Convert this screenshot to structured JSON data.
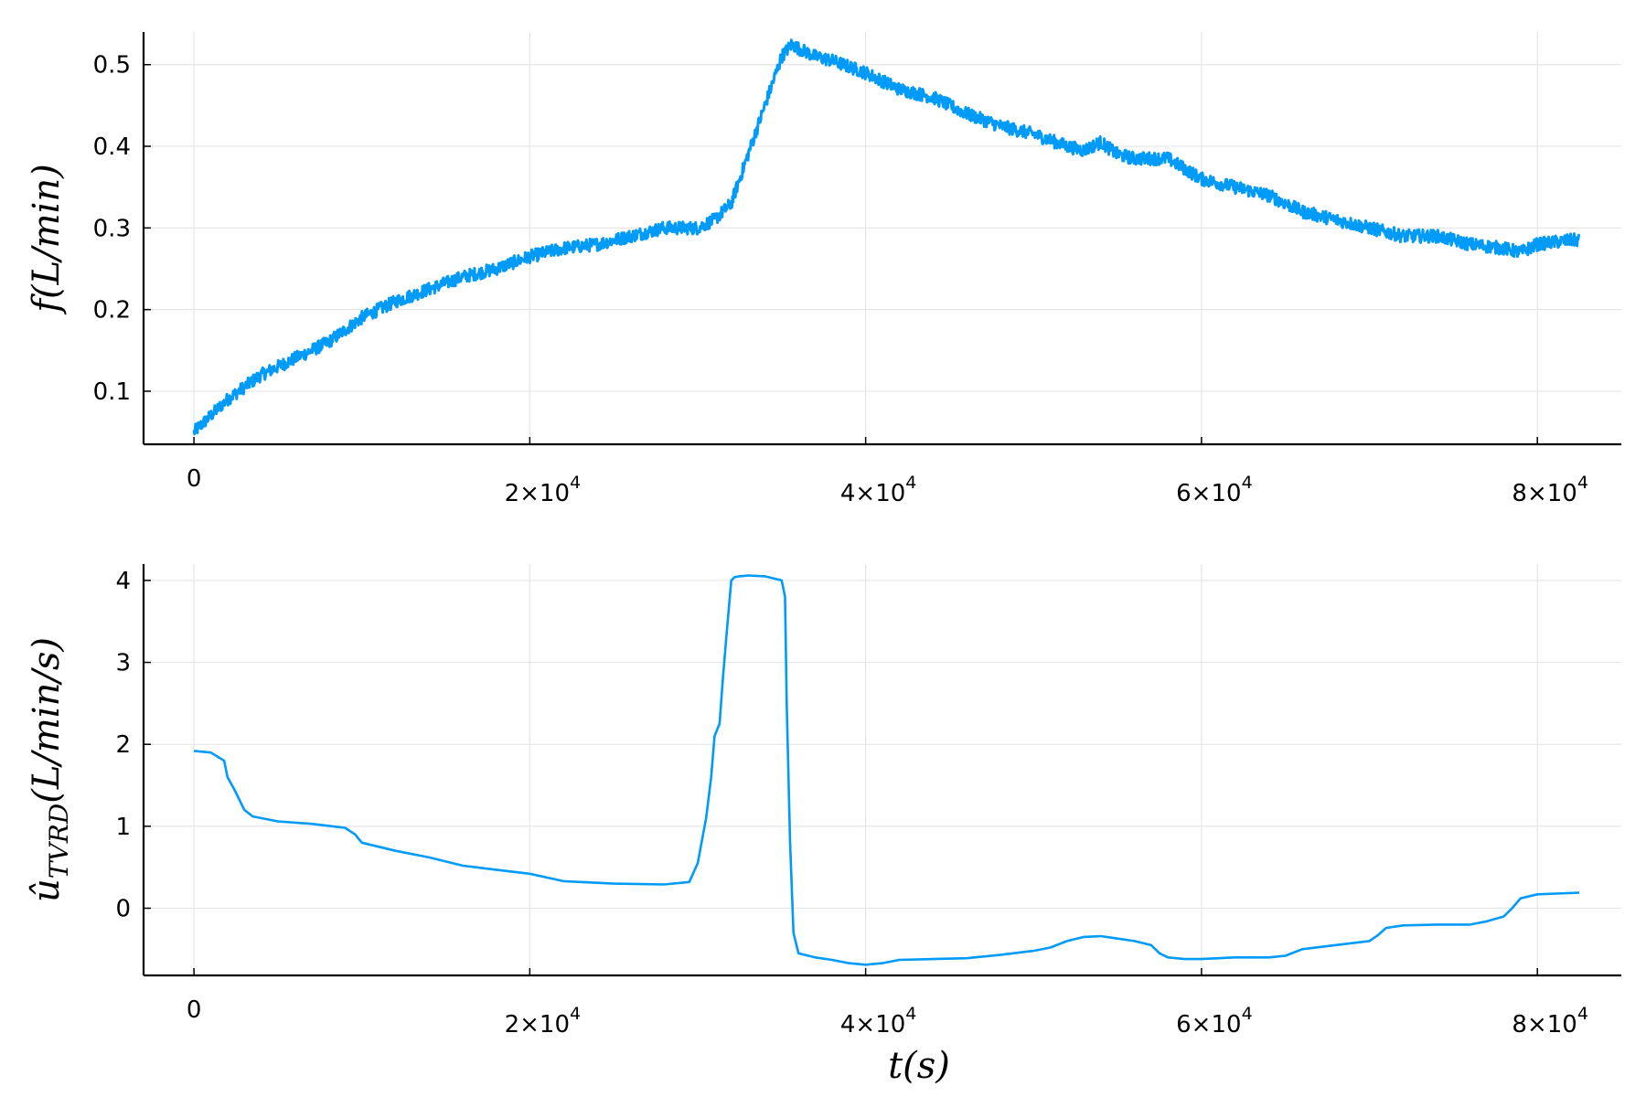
{
  "chart_data": [
    {
      "type": "line",
      "title": "",
      "xlabel": "",
      "ylabel": "f(L/min)",
      "xlim": [
        -3000,
        85000
      ],
      "ylim": [
        0.035,
        0.54
      ],
      "grid": true,
      "x_ticks": [
        0,
        20000,
        40000,
        60000,
        80000
      ],
      "x_tick_labels": [
        {
          "mantissa": "0",
          "exp": ""
        },
        {
          "mantissa": "2×10",
          "exp": "4"
        },
        {
          "mantissa": "4×10",
          "exp": "4"
        },
        {
          "mantissa": "6×10",
          "exp": "4"
        },
        {
          "mantissa": "8×10",
          "exp": "4"
        }
      ],
      "y_ticks": [
        0.1,
        0.2,
        0.3,
        0.4,
        0.5
      ],
      "y_tick_labels": [
        "0.1",
        "0.2",
        "0.3",
        "0.4",
        "0.5"
      ],
      "series": [
        {
          "color": "#009af9",
          "noisy": true,
          "x": [
            0,
            1000,
            2000,
            4000,
            6000,
            8000,
            10000,
            12000,
            14000,
            16000,
            18000,
            20000,
            22000,
            24000,
            26000,
            28000,
            30000,
            31000,
            32000,
            33000,
            34000,
            35000,
            35600,
            36000,
            37000,
            38000,
            40000,
            42000,
            44000,
            46000,
            48000,
            50000,
            52000,
            53000,
            54000,
            55000,
            56000,
            58000,
            60000,
            62000,
            64000,
            66000,
            68000,
            70000,
            72000,
            74000,
            76000,
            78000,
            79000,
            80000,
            82000,
            82500
          ],
          "y": [
            0.05,
            0.07,
            0.09,
            0.12,
            0.14,
            0.16,
            0.19,
            0.21,
            0.225,
            0.24,
            0.25,
            0.265,
            0.275,
            0.28,
            0.29,
            0.3,
            0.3,
            0.31,
            0.33,
            0.39,
            0.45,
            0.51,
            0.525,
            0.52,
            0.51,
            0.505,
            0.49,
            0.47,
            0.46,
            0.44,
            0.425,
            0.415,
            0.4,
            0.395,
            0.405,
            0.39,
            0.385,
            0.385,
            0.36,
            0.35,
            0.34,
            0.32,
            0.31,
            0.3,
            0.29,
            0.29,
            0.28,
            0.275,
            0.27,
            0.28,
            0.285,
            0.285
          ]
        }
      ]
    },
    {
      "type": "line",
      "title": "",
      "xlabel": "t(s)",
      "ylabel": "û_TVRD(L/min/s)",
      "xlim": [
        -3000,
        85000
      ],
      "ylim": [
        -0.82,
        4.2
      ],
      "grid": true,
      "x_ticks": [
        0,
        20000,
        40000,
        60000,
        80000
      ],
      "x_tick_labels": [
        {
          "mantissa": "0",
          "exp": ""
        },
        {
          "mantissa": "2×10",
          "exp": "4"
        },
        {
          "mantissa": "4×10",
          "exp": "4"
        },
        {
          "mantissa": "6×10",
          "exp": "4"
        },
        {
          "mantissa": "8×10",
          "exp": "4"
        }
      ],
      "y_ticks": [
        0,
        1,
        2,
        3,
        4
      ],
      "y_tick_labels": [
        "0",
        "1",
        "2",
        "3",
        "4"
      ],
      "series": [
        {
          "color": "#009af9",
          "noisy": false,
          "x": [
            0,
            1000,
            1800,
            2000,
            2400,
            3000,
            3500,
            5000,
            7000,
            9000,
            9600,
            10000,
            12000,
            14000,
            16000,
            18000,
            20000,
            22000,
            25000,
            28000,
            29500,
            30000,
            30500,
            30800,
            31000,
            31300,
            31500,
            31700,
            32000,
            32200,
            32500,
            33000,
            34000,
            35000,
            35200,
            35300,
            35500,
            35700,
            36000,
            37000,
            38000,
            39000,
            40000,
            41000,
            42000,
            44000,
            46000,
            48000,
            50000,
            51000,
            52000,
            53000,
            54000,
            55000,
            56000,
            57000,
            57500,
            58000,
            59000,
            60000,
            62000,
            64000,
            65000,
            66000,
            68000,
            70000,
            70500,
            71000,
            72000,
            74000,
            76000,
            77000,
            78000,
            78500,
            79000,
            80000,
            82500
          ],
          "y": [
            1.92,
            1.9,
            1.8,
            1.6,
            1.45,
            1.2,
            1.12,
            1.06,
            1.03,
            0.98,
            0.9,
            0.8,
            0.7,
            0.62,
            0.52,
            0.47,
            0.42,
            0.33,
            0.3,
            0.29,
            0.32,
            0.55,
            1.1,
            1.6,
            2.1,
            2.25,
            2.8,
            3.3,
            4.0,
            4.04,
            4.05,
            4.06,
            4.05,
            4.0,
            3.8,
            2.5,
            0.8,
            -0.3,
            -0.55,
            -0.6,
            -0.63,
            -0.67,
            -0.69,
            -0.67,
            -0.63,
            -0.62,
            -0.61,
            -0.57,
            -0.52,
            -0.48,
            -0.4,
            -0.35,
            -0.34,
            -0.37,
            -0.4,
            -0.45,
            -0.55,
            -0.6,
            -0.62,
            -0.62,
            -0.6,
            -0.6,
            -0.58,
            -0.5,
            -0.45,
            -0.4,
            -0.33,
            -0.24,
            -0.21,
            -0.2,
            -0.2,
            -0.16,
            -0.1,
            0.0,
            0.12,
            0.17,
            0.19
          ]
        }
      ]
    }
  ]
}
